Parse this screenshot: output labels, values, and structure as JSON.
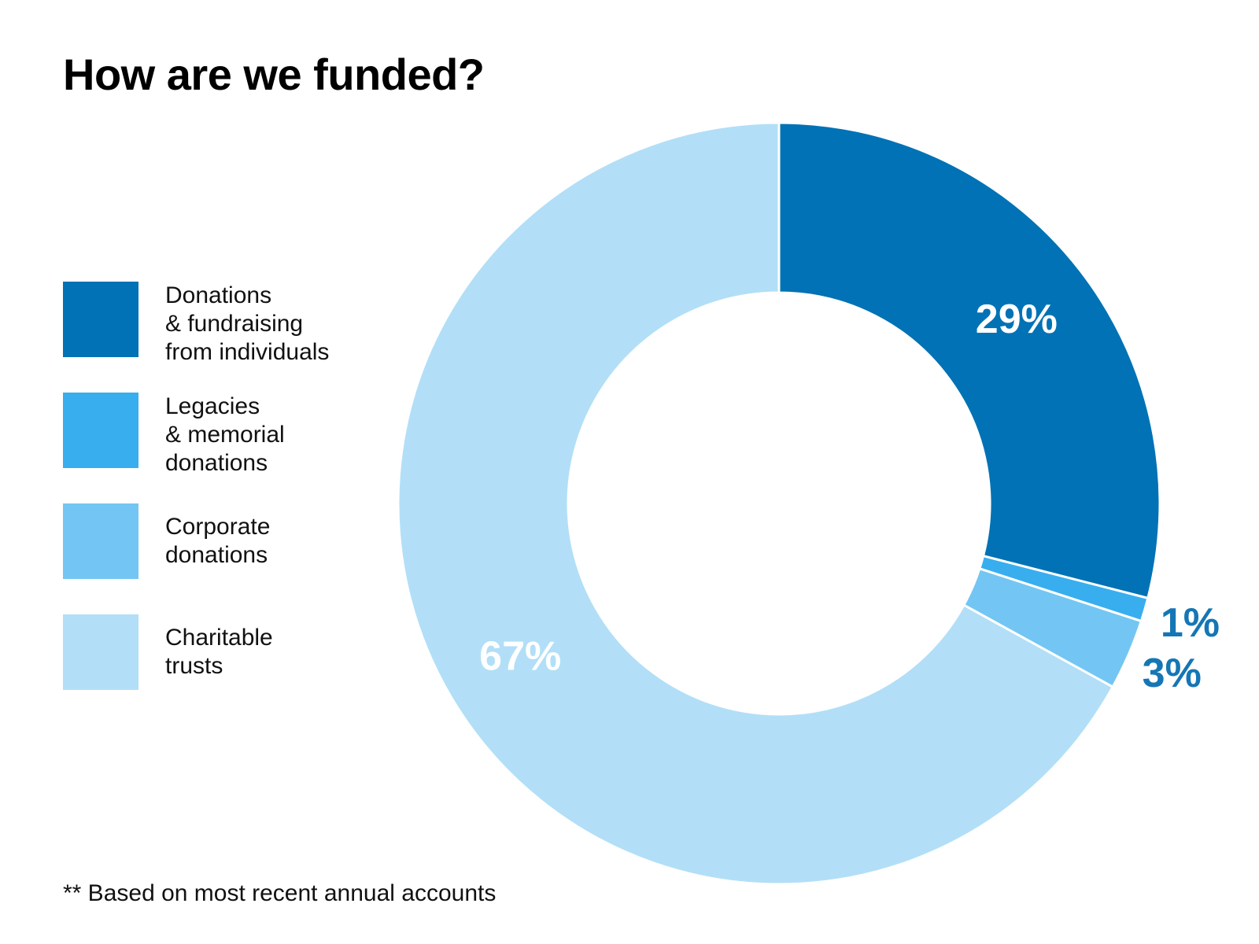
{
  "title": "How are we funded?",
  "footnote": "** Based on most recent annual accounts",
  "colors": {
    "donations": "#0072B5",
    "legacies": "#38AEEF",
    "corporate": "#73C6F3",
    "trusts": "#B2DFF7",
    "label_light": "#FFFFFF",
    "label_dark": "#1576B5"
  },
  "legend": [
    {
      "lines": [
        "Donations",
        "& fundraising",
        "from individuals"
      ],
      "color": "#0072B5"
    },
    {
      "lines": [
        "Legacies",
        "& memorial",
        "donations"
      ],
      "color": "#38AEEF"
    },
    {
      "lines": [
        "Corporate",
        "donations"
      ],
      "color": "#73C6F3"
    },
    {
      "lines": [
        "Charitable",
        "trusts"
      ],
      "color": "#B2DFF7"
    }
  ],
  "chart_data": {
    "type": "pie",
    "variant": "donut",
    "title": "How are we funded?",
    "legend_position": "left",
    "slices": [
      {
        "name": "Donations & fundraising from individuals",
        "value": 29,
        "label": "29%",
        "color": "#0072B5",
        "label_color": "#FFFFFF",
        "label_placement": "inside"
      },
      {
        "name": "Legacies & memorial donations",
        "value": 1,
        "label": "1%",
        "color": "#38AEEF",
        "label_color": "#1576B5",
        "label_placement": "outside"
      },
      {
        "name": "Corporate donations",
        "value": 3,
        "label": "3%",
        "color": "#73C6F3",
        "label_color": "#1576B5",
        "label_placement": "outside"
      },
      {
        "name": "Charitable trusts",
        "value": 67,
        "label": "67%",
        "color": "#B2DFF7",
        "label_color": "#FFFFFF",
        "label_placement": "inside"
      }
    ],
    "start_angle": "12 o'clock",
    "direction": "clockwise",
    "footnote": "** Based on most recent annual accounts"
  }
}
